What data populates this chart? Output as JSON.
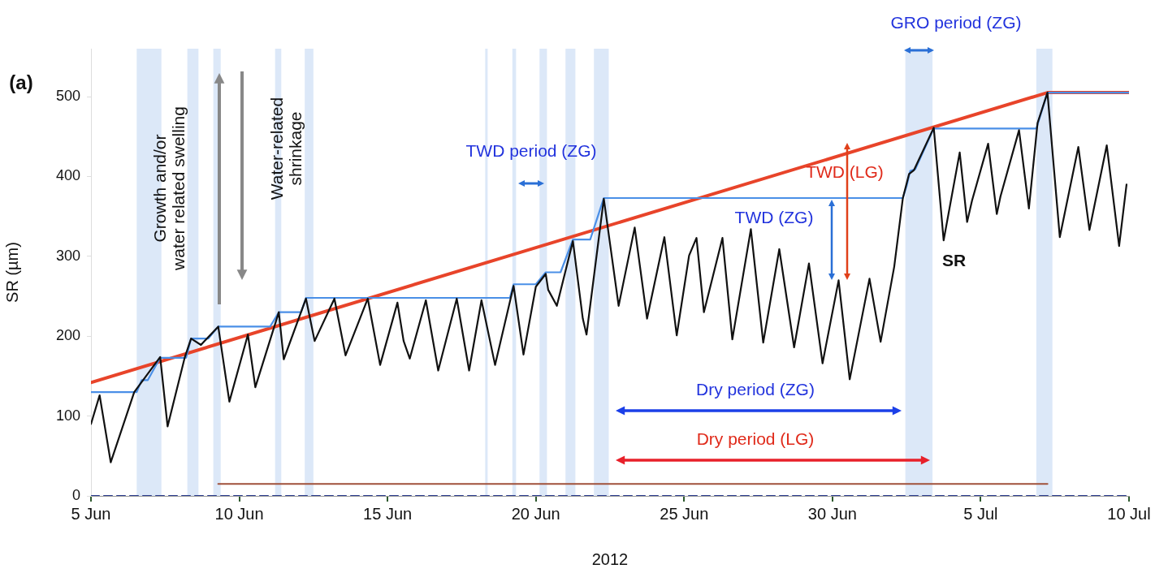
{
  "chart_data": {
    "type": "line",
    "xlabel": "2012",
    "ylabel": "SR (µm)",
    "marker": "none",
    "grid": false,
    "legend": false,
    "xlim": [
      "2012-06-05",
      "2012-07-10"
    ],
    "xticks": [
      {
        "value": "2012-06-05",
        "label": "5 Jun"
      },
      {
        "value": "2012-06-10",
        "label": "10 Jun"
      },
      {
        "value": "2012-06-15",
        "label": "15 Jun"
      },
      {
        "value": "2012-06-20",
        "label": "20 Jun"
      },
      {
        "value": "2012-06-25",
        "label": "25 Jun"
      },
      {
        "value": "2012-06-30",
        "label": "30 Jun"
      },
      {
        "value": "2012-07-05",
        "label": "5 Jul"
      },
      {
        "value": "2012-07-10",
        "label": "10 Jul"
      }
    ],
    "ylim": [
      0,
      560
    ],
    "yticks": [
      0,
      100,
      200,
      300,
      400,
      500
    ],
    "series": [
      {
        "name": "SR",
        "color": "#111111",
        "x": [
          "2012-06-05T00:00",
          "2012-06-05T07:00",
          "2012-06-05T16:00",
          "2012-06-06T11:00",
          "2012-06-07T08:00",
          "2012-06-07T14:00",
          "2012-06-08T04:00",
          "2012-06-08T09:00",
          "2012-06-08T17:00",
          "2012-06-08T20:00",
          "2012-06-09T07:00",
          "2012-06-09T16:00",
          "2012-06-10T07:00",
          "2012-06-10T13:00",
          "2012-06-11T08:00",
          "2012-06-11T12:00",
          "2012-06-12T06:00",
          "2012-06-12T13:00",
          "2012-06-13T05:00",
          "2012-06-13T14:00",
          "2012-06-14T08:00",
          "2012-06-14T18:00",
          "2012-06-15T08:00",
          "2012-06-15T13:00",
          "2012-06-15T18:00",
          "2012-06-16T07:00",
          "2012-06-16T17:00",
          "2012-06-17T08:00",
          "2012-06-17T18:00",
          "2012-06-18T04:00",
          "2012-06-18T15:00",
          "2012-06-19T06:00",
          "2012-06-19T14:00",
          "2012-06-20T00:00",
          "2012-06-20T08:00",
          "2012-06-20T10:00",
          "2012-06-20T17:00",
          "2012-06-21T06:00",
          "2012-06-21T14:00",
          "2012-06-21T17:00",
          "2012-06-22T07:00",
          "2012-06-22T19:00",
          "2012-06-23T08:00",
          "2012-06-23T18:00",
          "2012-06-24T08:00",
          "2012-06-24T18:00",
          "2012-06-25T04:00",
          "2012-06-25T10:00",
          "2012-06-25T16:00",
          "2012-06-26T07:00",
          "2012-06-26T15:00",
          "2012-06-27T06:00",
          "2012-06-27T16:00",
          "2012-06-28T05:00",
          "2012-06-28T17:00",
          "2012-06-29T05:00",
          "2012-06-29T16:00",
          "2012-06-30T05:00",
          "2012-06-30T14:00",
          "2012-07-01T06:00",
          "2012-07-01T15:00",
          "2012-07-02T02:00",
          "2012-07-02T09:00",
          "2012-07-02T14:00",
          "2012-07-02T18:00",
          "2012-07-03T10:00",
          "2012-07-03T18:00",
          "2012-07-04T07:00",
          "2012-07-04T13:00",
          "2012-07-04T17:00",
          "2012-07-05T06:00",
          "2012-07-05T13:00",
          "2012-07-05T16:00",
          "2012-07-06T07:00",
          "2012-07-06T15:00",
          "2012-07-06T22:00",
          "2012-07-07T06:00",
          "2012-07-07T16:00",
          "2012-07-08T07:00",
          "2012-07-08T16:00",
          "2012-07-09T06:00",
          "2012-07-09T16:00",
          "2012-07-09T22:00"
        ],
        "values": [
          90,
          126,
          42,
          130,
          174,
          87,
          174,
          197,
          189,
          194,
          212,
          118,
          202,
          136,
          230,
          171,
          247,
          194,
          247,
          176,
          247,
          164,
          242,
          194,
          172,
          245,
          157,
          247,
          157,
          245,
          164,
          263,
          177,
          262,
          278,
          258,
          238,
          319,
          222,
          202,
          372,
          238,
          336,
          222,
          324,
          201,
          301,
          323,
          230,
          323,
          196,
          334,
          192,
          309,
          186,
          291,
          166,
          270,
          146,
          272,
          193,
          287,
          373,
          403,
          408,
          461,
          320,
          430,
          343,
          370,
          441,
          353,
          375,
          458,
          360,
          467,
          505,
          324,
          437,
          333,
          439,
          313,
          390
        ]
      },
      {
        "color": "#4a8fe7",
        "x": [
          "2012-06-05T00:00",
          "2012-06-06T13:00",
          "2012-06-06T17:00",
          "2012-06-06T22:00",
          "2012-06-07T08:00",
          "2012-06-08T05:00",
          "2012-06-08T09:00",
          "2012-06-08T23:00",
          "2012-06-09T07:00",
          "2012-06-11T01:00",
          "2012-06-11T08:00",
          "2012-06-12T02:00",
          "2012-06-12T06:00",
          "2012-06-19T03:00",
          "2012-06-19T06:00",
          "2012-06-20T00:00",
          "2012-06-20T08:00",
          "2012-06-20T20:00",
          "2012-06-21T06:00",
          "2012-06-21T20:00",
          "2012-06-22T07:00",
          "2012-07-02T09:00",
          "2012-07-02T12:00",
          "2012-07-02T15:00",
          "2012-07-02T19:00",
          "2012-07-03T10:00",
          "2012-07-06T21:00",
          "2012-07-07T06:00",
          "2012-07-10T00:00"
        ],
        "values": [
          130,
          130,
          145,
          145,
          173,
          173,
          197,
          197,
          212,
          212,
          230,
          230,
          248,
          248,
          265,
          265,
          280,
          280,
          321,
          321,
          373,
          373,
          388,
          407,
          409,
          460,
          460,
          505,
          505
        ]
      },
      {
        "color": "#e8442a",
        "x": [
          "2012-06-05T00:00",
          "2012-07-07T06:00",
          "2012-07-10T00:00"
        ],
        "values": [
          142,
          505,
          505
        ]
      },
      {
        "color": "#2b3d8f",
        "line_style": "dashed",
        "x": [
          "2012-06-05T00:00",
          "2012-07-10T00:00"
        ],
        "values": [
          0,
          0
        ]
      },
      {
        "color": "#a0503a",
        "x": [
          "2012-06-09T07:00",
          "2012-07-07T06:00"
        ],
        "values": [
          15,
          15
        ]
      }
    ],
    "bands": [
      {
        "axis": "x",
        "from": "2012-06-06T13:00",
        "to": "2012-06-07T09:00",
        "color": "#dce8f8"
      },
      {
        "axis": "x",
        "from": "2012-06-08T06:00",
        "to": "2012-06-08T15:00",
        "color": "#dce8f8"
      },
      {
        "axis": "x",
        "from": "2012-06-09T03:00",
        "to": "2012-06-09T09:00",
        "color": "#dce8f8"
      },
      {
        "axis": "x",
        "from": "2012-06-11T05:00",
        "to": "2012-06-11T10:00",
        "color": "#dce8f8"
      },
      {
        "axis": "x",
        "from": "2012-06-12T05:00",
        "to": "2012-06-12T12:00",
        "color": "#dce8f8"
      },
      {
        "axis": "x",
        "from": "2012-06-18T07:00",
        "to": "2012-06-18T09:00",
        "color": "#dce8f8"
      },
      {
        "axis": "x",
        "from": "2012-06-19T05:00",
        "to": "2012-06-19T08:00",
        "color": "#dce8f8"
      },
      {
        "axis": "x",
        "from": "2012-06-20T03:00",
        "to": "2012-06-20T09:00",
        "color": "#dce8f8"
      },
      {
        "axis": "x",
        "from": "2012-06-21T00:00",
        "to": "2012-06-21T08:00",
        "color": "#dce8f8"
      },
      {
        "axis": "x",
        "from": "2012-06-21T23:00",
        "to": "2012-06-22T11:00",
        "color": "#dce8f8"
      },
      {
        "axis": "x",
        "from": "2012-07-02T11:00",
        "to": "2012-07-03T09:00",
        "color": "#dce8f8"
      },
      {
        "axis": "x",
        "from": "2012-07-06T21:00",
        "to": "2012-07-07T10:00",
        "color": "#dce8f8"
      }
    ],
    "annotations": [
      "(a)",
      "Growth and/or\nwater related swelling",
      "Water-related\nshrinkage",
      "TWD period (ZG)",
      "GRO period (ZG)",
      "TWD (LG)",
      "TWD (ZG)",
      "Dry period (ZG)",
      "Dry period (LG)"
    ]
  }
}
